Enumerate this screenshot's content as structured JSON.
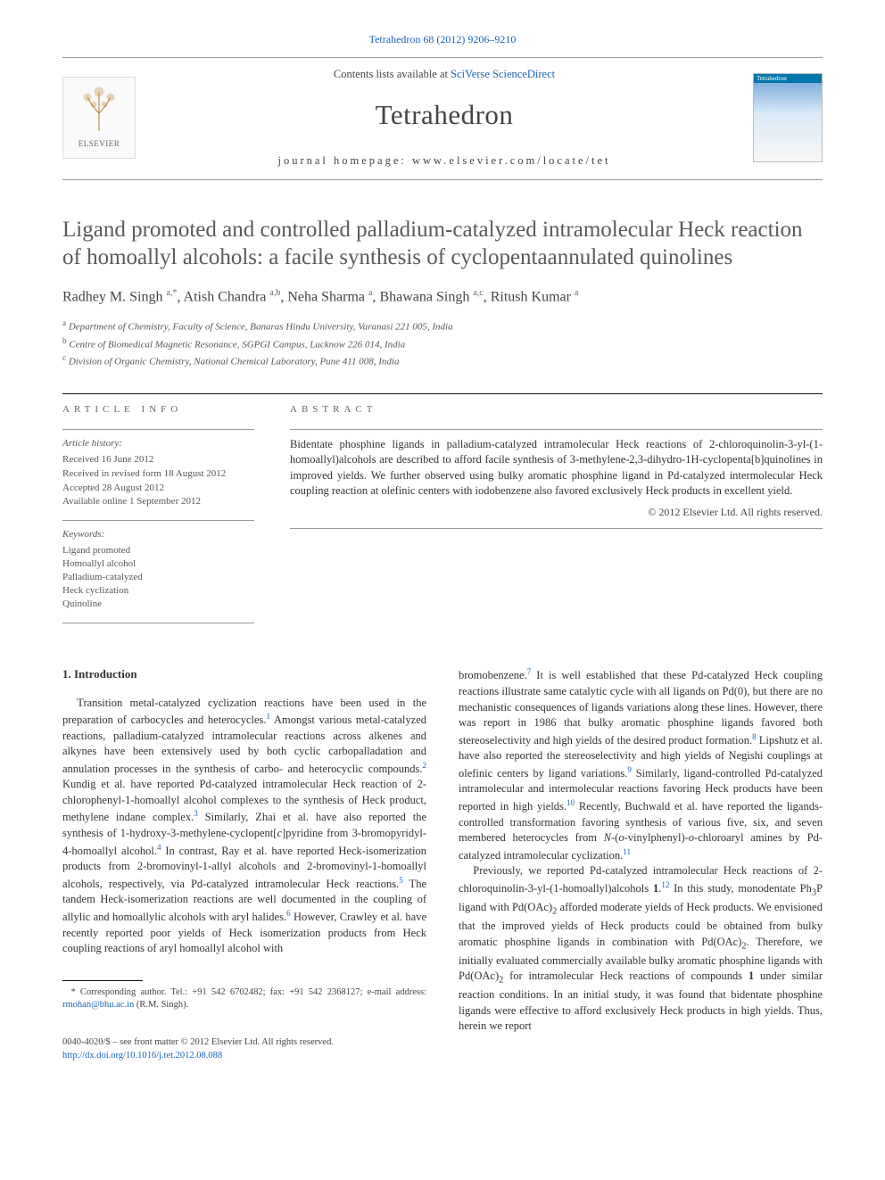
{
  "journal_ref": "Tetrahedron 68 (2012) 9206–9210",
  "header": {
    "contents_prefix": "Contents lists available at ",
    "contents_link": "SciVerse ScienceDirect",
    "journal_name": "Tetrahedron",
    "homepage_prefix": "journal homepage: ",
    "homepage": "www.elsevier.com/locate/tet",
    "publisher_label": "ELSEVIER",
    "cover_label": "Tetrahedron"
  },
  "title": "Ligand promoted and controlled palladium-catalyzed intramolecular Heck reaction of homoallyl alcohols: a facile synthesis of cyclopentaannulated quinolines",
  "authors_html": "Radhey M. Singh <sup>a,*</sup>, Atish Chandra <sup>a,b</sup>, Neha Sharma <sup>a</sup>, Bhawana Singh <sup>a,c</sup>, Ritush Kumar <sup>a</sup>",
  "affiliations": [
    "a Department of Chemistry, Faculty of Science, Banaras Hindu University, Varanasi 221 005, India",
    "b Centre of Biomedical Magnetic Resonance, SGPGI Campus, Lucknow 226 014, India",
    "c Division of Organic Chemistry, National Chemical Laboratory, Pune 411 008, India"
  ],
  "article_info": {
    "heading": "ARTICLE INFO",
    "history_label": "Article history:",
    "history": [
      "Received 16 June 2012",
      "Received in revised form 18 August 2012",
      "Accepted 28 August 2012",
      "Available online 1 September 2012"
    ],
    "keywords_label": "Keywords:",
    "keywords": [
      "Ligand promoted",
      "Homoallyl alcohol",
      "Palladium-catalyzed",
      "Heck cyclization",
      "Quinoline"
    ]
  },
  "abstract": {
    "heading": "ABSTRACT",
    "body": "Bidentate phosphine ligands in palladium-catalyzed intramolecular Heck reactions of 2-chloroquinolin-3-yl-(1-homoallyl)alcohols are described to afford facile synthesis of 3-methylene-2,3-dihydro-1H-cyclopenta[b]quinolines in improved yields. We further observed using bulky aromatic phosphine ligand in Pd-catalyzed intermolecular Heck coupling reaction at olefinic centers with iodobenzene also favored exclusively Heck products in excellent yield.",
    "copyright": "© 2012 Elsevier Ltd. All rights reserved."
  },
  "section_heading": "1. Introduction",
  "col1_p1": "Transition metal-catalyzed cyclization reactions have been used in the preparation of carbocycles and heterocycles.<sup class=\"supref\">1</sup> Amongst various metal-catalyzed reactions, palladium-catalyzed intramolecular reactions across alkenes and alkynes have been extensively used by both cyclic carbopalladation and annulation processes in the synthesis of carbo- and heterocyclic compounds.<sup class=\"supref\">2</sup> Kundig et al. have reported Pd-catalyzed intramolecular Heck reaction of 2-chlorophenyl-1-homoallyl alcohol complexes to the synthesis of Heck product, methylene indane complex.<sup class=\"supref\">3</sup> Similarly, Zhai et al. have also reported the synthesis of 1-hydroxy-3-methylene-cyclopent[<span class=\"ital\">c</span>]pyridine from 3-bromopyridyl-4-homoallyl alcohol.<sup class=\"supref\">4</sup> In contrast, Ray et al. have reported Heck-isomerization products from 2-bromovinyl-1-allyl alcohols and 2-bromovinyl-1-homoallyl alcohols, respectively, via Pd-catalyzed intramolecular Heck reactions.<sup class=\"supref\">5</sup> The tandem Heck-isomerization reactions are well documented in the coupling of allylic and homoallylic alcohols with aryl halides.<sup class=\"supref\">6</sup> However, Crawley et al. have recently reported poor yields of Heck isomerization products from Heck coupling reactions of aryl homoallyl alcohol with",
  "col2_p1": "bromobenzene.<sup class=\"supref\">7</sup> It is well established that these Pd-catalyzed Heck coupling reactions illustrate same catalytic cycle with all ligands on Pd(0), but there are no mechanistic consequences of ligands variations along these lines. However, there was report in 1986 that bulky aromatic phosphine ligands favored both stereoselectivity and high yields of the desired product formation.<sup class=\"supref\">8</sup> Lipshutz et al. have also reported the stereoselectivity and high yields of Negishi couplings at olefinic centers by ligand variations.<sup class=\"supref\">9</sup> Similarly, ligand-controlled Pd-catalyzed intramolecular and intermolecular reactions favoring Heck products have been reported in high yields.<sup class=\"supref\">10</sup> Recently, Buchwald et al. have reported the ligands-controlled transformation favoring synthesis of various five, six, and seven membered heterocycles from <span class=\"ital\">N</span>-(<span class=\"ital\">o</span>-vinylphenyl)-<span class=\"ital\">o</span>-chloroaryl amines by Pd-catalyzed intramolecular cyclization.<sup class=\"supref\">11</sup>",
  "col2_p2": "Previously, we reported Pd-catalyzed intramolecular Heck reactions of 2-chloroquinolin-3-yl-(1-homoallyl)alcohols <b>1</b>.<sup class=\"supref\">12</sup> In this study, monodentate Ph<sub>3</sub>P ligand with Pd(OAc)<sub>2</sub> afforded moderate yields of Heck products. We envisioned that the improved yields of Heck products could be obtained from bulky aromatic phosphine ligands in combination with Pd(OAc)<sub>2</sub>. Therefore, we initially evaluated commercially available bulky aromatic phosphine ligands with Pd(OAc)<sub>2</sub> for intramolecular Heck reactions of compounds <b>1</b> under similar reaction conditions. In an initial study, it was found that bidentate phosphine ligands were effective to afford exclusively Heck products in high yields. Thus, herein we report",
  "footnote": {
    "text": "* Corresponding author. Tel.: +91 542 6702482; fax: +91 542 2368127; e-mail address: ",
    "email": "rmohan@bhu.ac.in",
    "suffix": " (R.M. Singh)."
  },
  "footer": {
    "line1": "0040-4020/$ – see front matter © 2012 Elsevier Ltd. All rights reserved.",
    "doi": "http://dx.doi.org/10.1016/j.tet.2012.08.088"
  },
  "colors": {
    "link": "#1665b8",
    "text": "#323232",
    "muted": "#666666"
  }
}
